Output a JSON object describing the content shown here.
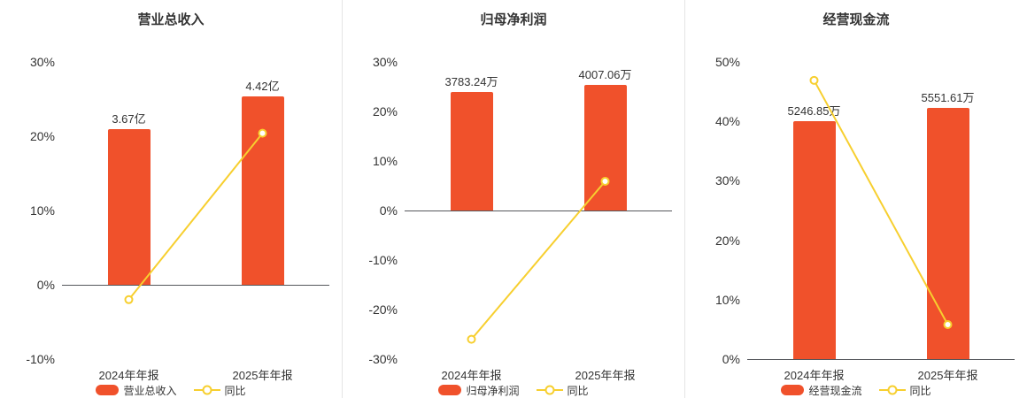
{
  "colors": {
    "bar": "#f0512b",
    "line": "#f7cf2f",
    "axis": "#55575c",
    "text": "#333333",
    "divider": "#e4e4e4"
  },
  "chart_data": [
    {
      "type": "bar+line",
      "title": "营业总收入",
      "categories": [
        "2024年年报",
        "2025年年报"
      ],
      "bar_series": {
        "name": "营业总收入",
        "labels": [
          "3.67亿",
          "4.42亿"
        ],
        "values": [
          3.67,
          4.42
        ],
        "unit": "亿",
        "heights_pct": [
          21.0,
          25.3
        ]
      },
      "line_series": {
        "name": "同比",
        "values_pct": [
          -2.0,
          20.4
        ]
      },
      "ylim": [
        -10,
        30
      ],
      "yticks": [
        30,
        20,
        10,
        0,
        -10
      ],
      "ytick_labels": [
        "30%",
        "20%",
        "10%",
        "0%",
        "-10%"
      ],
      "legend_position": "bottom",
      "grid": false
    },
    {
      "type": "bar+line",
      "title": "归母净利润",
      "categories": [
        "2024年年报",
        "2025年年报"
      ],
      "bar_series": {
        "name": "归母净利润",
        "labels": [
          "3783.24万",
          "4007.06万"
        ],
        "values": [
          3783.24,
          4007.06
        ],
        "unit": "万",
        "heights_pct": [
          24.0,
          25.4
        ]
      },
      "line_series": {
        "name": "同比",
        "values_pct": [
          -26.0,
          5.9
        ]
      },
      "ylim": [
        -30,
        30
      ],
      "yticks": [
        30,
        20,
        10,
        0,
        -10,
        -20,
        -30
      ],
      "ytick_labels": [
        "30%",
        "20%",
        "10%",
        "0%",
        "-10%",
        "-20%",
        "-30%"
      ],
      "legend_position": "bottom",
      "grid": false
    },
    {
      "type": "bar+line",
      "title": "经营现金流",
      "categories": [
        "2024年年报",
        "2025年年报"
      ],
      "bar_series": {
        "name": "经营现金流",
        "labels": [
          "5246.85万",
          "5551.61万"
        ],
        "values": [
          5246.85,
          5551.61
        ],
        "unit": "万",
        "heights_pct": [
          40.0,
          42.3
        ]
      },
      "line_series": {
        "name": "同比",
        "values_pct": [
          46.9,
          5.8
        ]
      },
      "ylim": [
        0,
        50
      ],
      "yticks": [
        50,
        40,
        30,
        20,
        10,
        0
      ],
      "ytick_labels": [
        "50%",
        "40%",
        "30%",
        "20%",
        "10%",
        "0%"
      ],
      "legend_position": "bottom",
      "grid": false
    }
  ]
}
